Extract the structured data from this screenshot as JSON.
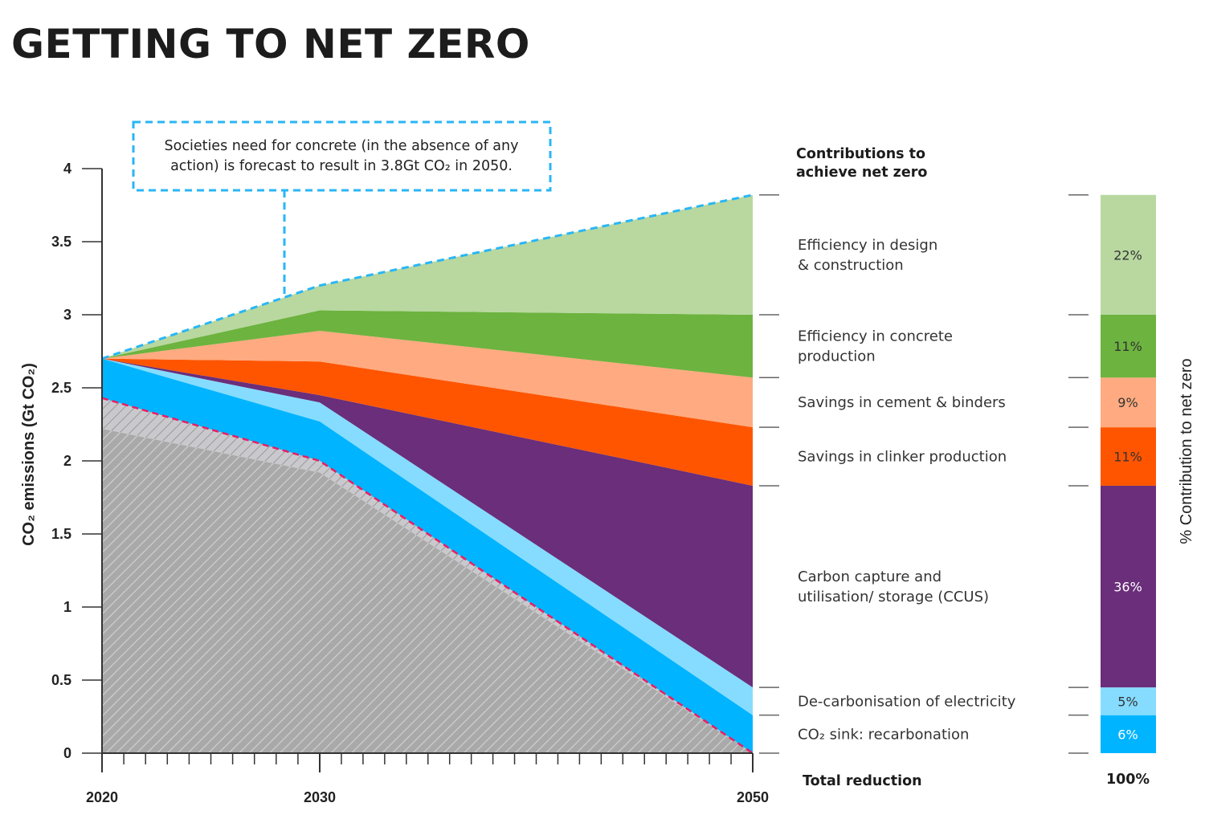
{
  "title": "GETTING TO NET ZERO",
  "annotation": {
    "line1": "Societies need for concrete (in the absence of any",
    "line2": "action) is forecast to result in 3.8Gt CO₂ in 2050."
  },
  "contributions_heading": {
    "line1": "Contributions to",
    "line2": "achieve net zero"
  },
  "total_label": "Total reduction",
  "total_value": "100%",
  "colors": {
    "baseline_fill": "#a9a9a9",
    "hatch_light": "#c9c9cd",
    "dash_blue": "#29b6f6",
    "dash_magenta": "#e91e63"
  },
  "chart_data": {
    "type": "area",
    "x": [
      2020,
      2030,
      2050
    ],
    "ylabel": "CO₂ emissions (Gt CO₂)",
    "right_axis_label": "% Contribution to net zero",
    "ylim": [
      0,
      4
    ],
    "yticks": [
      "0",
      "0.5",
      "1",
      "1.5",
      "2",
      "2.5",
      "3",
      "3.5",
      "4"
    ],
    "ytick_values": [
      0,
      0.5,
      1,
      1.5,
      2,
      2.5,
      3,
      3.5,
      4
    ],
    "xticks": [
      "2020",
      "2030",
      "2050"
    ],
    "baseline_dashed": [
      2.43,
      2.0,
      0.0
    ],
    "baseline_solid": [
      2.22,
      1.92,
      0.0
    ],
    "series": [
      {
        "name": "CO₂ sink: recarbonation",
        "lines": [
          "CO₂ sink: recarbonation"
        ],
        "top": [
          2.7,
          2.27,
          0.26
        ],
        "pct": "6%",
        "color": "#00b4ff",
        "text_color": "#ffffff"
      },
      {
        "name": "De-carbonisation of electricity",
        "lines": [
          "De-carbonisation of electricity"
        ],
        "top": [
          2.7,
          2.4,
          0.45
        ],
        "pct": "5%",
        "color": "#85dcff",
        "text_color": "#333333"
      },
      {
        "name": "Carbon capture and utilisation/ storage (CCUS)",
        "lines": [
          "Carbon capture and",
          "utilisation/ storage (CCUS)"
        ],
        "top": [
          2.7,
          2.45,
          1.83
        ],
        "pct": "36%",
        "color": "#6a2e7a",
        "text_color": "#ffffff"
      },
      {
        "name": "Savings in clinker production",
        "lines": [
          "Savings in clinker production"
        ],
        "top": [
          2.7,
          2.68,
          2.23
        ],
        "pct": "11%",
        "color": "#ff5500",
        "text_color": "#333333"
      },
      {
        "name": "Savings in cement & binders",
        "lines": [
          "Savings in cement & binders"
        ],
        "top": [
          2.7,
          2.89,
          2.57
        ],
        "pct": "9%",
        "color": "#ffaa80",
        "text_color": "#333333"
      },
      {
        "name": "Efficiency in concrete production",
        "lines": [
          "Efficiency in concrete",
          "production"
        ],
        "top": [
          2.7,
          3.03,
          3.0
        ],
        "pct": "11%",
        "color": "#6db33f",
        "text_color": "#333333"
      },
      {
        "name": "Efficiency in design & construction",
        "lines": [
          "Efficiency in design",
          "& construction"
        ],
        "top": [
          2.7,
          3.2,
          3.82
        ],
        "pct": "22%",
        "color": "#b8d8a0",
        "text_color": "#333333"
      }
    ]
  }
}
